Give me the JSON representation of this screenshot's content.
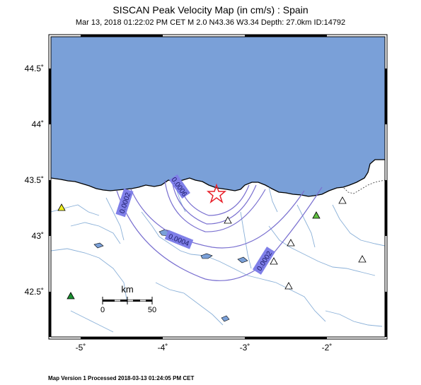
{
  "header": {
    "title": "SISCAN Peak Velocity Map (in cm/s) : Spain",
    "subtitle": "Mar 13, 2018 01:22:02 PM CET   M 2.0   N43.36 W3.34   Depth: 27.0km   ID:14792"
  },
  "footer": {
    "text": "Map Version 1 Processed 2018-03-13 01:24:05 PM CET"
  },
  "axes": {
    "lat_labels": [
      "44.5˚",
      "44˚",
      "43.5˚",
      "43˚",
      "42.5˚"
    ],
    "lon_labels": [
      "-5˚",
      "-4˚",
      "-3˚",
      "-2˚"
    ]
  },
  "contours": {
    "labels": [
      "0.0006",
      "0.0002",
      "0.0004",
      "0.0002"
    ]
  },
  "scale_bar": {
    "unit": "km",
    "start": "0",
    "end": "50"
  },
  "colors": {
    "sea": "#7aa0d8",
    "contour": "#7a70d0",
    "contour_label_bg": "#7f7fe8",
    "epicenter": "#e8202a",
    "station_yellow": "#f0f020",
    "station_green": "#60c040",
    "station_dkgreen": "#1a9030",
    "station_white": "#ffffff",
    "river": "#8ab0d8"
  },
  "icons": {
    "epicenter": "star-icon",
    "station": "triangle-icon"
  }
}
